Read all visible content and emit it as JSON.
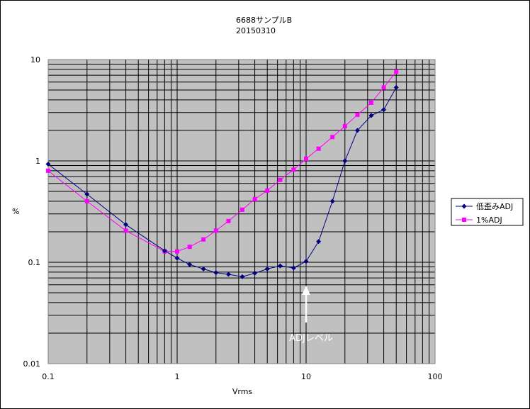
{
  "chart_data": {
    "type": "line",
    "title": "6688サンプルB",
    "subtitle": "20150310",
    "xlabel": "Vrms",
    "ylabel": "%",
    "x_scale": "log",
    "y_scale": "log",
    "xlim": [
      0.1,
      100
    ],
    "ylim": [
      0.01,
      10
    ],
    "x_tick_labels": [
      "0.1",
      "1",
      "10",
      "100"
    ],
    "y_tick_labels": [
      "0.01",
      "0.1",
      "1",
      "10"
    ],
    "grid": true,
    "plot_background": "#c0c0c0",
    "legend_position": "right",
    "series": [
      {
        "name": "低歪みADJ",
        "color": "#000080",
        "marker": "diamond",
        "x": [
          0.1,
          0.2,
          0.4,
          0.8,
          1.0,
          1.25,
          1.6,
          2.0,
          2.5,
          3.2,
          4.0,
          5.0,
          6.3,
          8.0,
          10,
          12.5,
          16,
          20,
          25,
          32,
          40,
          50
        ],
        "y": [
          0.93,
          0.47,
          0.235,
          0.13,
          0.11,
          0.095,
          0.086,
          0.079,
          0.076,
          0.072,
          0.078,
          0.086,
          0.092,
          0.088,
          0.102,
          0.16,
          0.4,
          1.0,
          2.0,
          2.8,
          3.2,
          5.3
        ]
      },
      {
        "name": "1%ADJ",
        "color": "#ff00ff",
        "marker": "square",
        "x": [
          0.1,
          0.2,
          0.4,
          0.8,
          1.0,
          1.25,
          1.6,
          2.0,
          2.5,
          3.2,
          4.0,
          5.0,
          6.3,
          8.0,
          10,
          12.5,
          16,
          20,
          25,
          32,
          40,
          50
        ],
        "y": [
          0.8,
          0.4,
          0.205,
          0.128,
          0.128,
          0.142,
          0.168,
          0.205,
          0.255,
          0.33,
          0.42,
          0.51,
          0.65,
          0.82,
          1.05,
          1.32,
          1.72,
          2.2,
          2.85,
          3.75,
          5.3,
          7.6
        ]
      }
    ],
    "annotations": [
      {
        "text": "ADJレベル",
        "x": 10,
        "arrow": "up"
      }
    ]
  }
}
